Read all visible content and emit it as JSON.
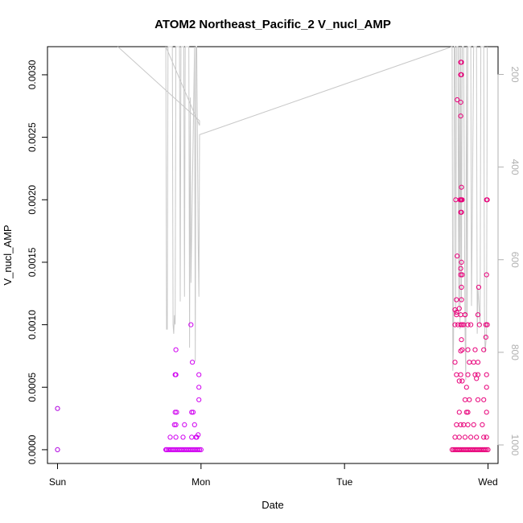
{
  "chart_data": {
    "type": "scatter",
    "title": "ATOM2 Northeast_Pacific_2 V_nucl_AMP",
    "xlabel": "Date",
    "ylabel": "V_nucl_AMP",
    "x_ticks": [
      {
        "label": "Sun",
        "value": 0
      },
      {
        "label": "Mon",
        "value": 1
      },
      {
        "label": "Tue",
        "value": 2
      },
      {
        "label": "Wed",
        "value": 3
      }
    ],
    "xlim": [
      -0.07,
      3.07
    ],
    "ylim": [
      -0.00011,
      0.003225
    ],
    "y_ticks": [
      {
        "label": "0.0000",
        "value": 0
      },
      {
        "label": "0.0005",
        "value": 0.0005
      },
      {
        "label": "0.0010",
        "value": 0.001
      },
      {
        "label": "0.0015",
        "value": 0.0015
      },
      {
        "label": "0.0020",
        "value": 0.002
      },
      {
        "label": "0.0025",
        "value": 0.0025
      },
      {
        "label": "0.0030",
        "value": 0.003
      }
    ],
    "y2lim": [
      1040,
      140
    ],
    "y2_ticks": [
      {
        "label": "200",
        "value": 200
      },
      {
        "label": "400",
        "value": 400
      },
      {
        "label": "600",
        "value": 600
      },
      {
        "label": "800",
        "value": 800
      },
      {
        "label": "1000",
        "value": 1000
      }
    ],
    "grid": false,
    "colors": {
      "profile_line": "#c8c8c8",
      "sun_points": "#b000e0",
      "mon_points": "#d000f0",
      "wed_points": "#e8007a",
      "axis": "#000000",
      "right_axis": "#b0b0b0"
    },
    "series": [
      {
        "group": "sun",
        "color": "#b000e0",
        "points": [
          [
            0.0,
            0.00033
          ],
          [
            0.0,
            0.0
          ]
        ]
      },
      {
        "group": "mon",
        "color": "#d000f0",
        "points": [
          [
            0.88,
            0.0
          ],
          [
            0.89,
            0.0
          ],
          [
            0.9,
            0.0
          ],
          [
            0.91,
            0.0
          ],
          [
            0.92,
            0.0
          ],
          [
            0.93,
            0.0
          ],
          [
            0.94,
            0.0
          ],
          [
            0.95,
            0.0
          ],
          [
            0.96,
            0.0
          ],
          [
            0.97,
            0.0
          ],
          [
            0.98,
            0.0
          ],
          [
            0.99,
            0.0
          ],
          [
            1.0,
            0.0
          ],
          [
            0.78,
            0.0
          ],
          [
            0.79,
            0.0
          ],
          [
            0.8,
            0.0
          ],
          [
            0.81,
            0.0
          ],
          [
            0.82,
            0.0
          ],
          [
            0.83,
            0.0
          ],
          [
            0.84,
            0.0
          ],
          [
            0.85,
            0.0
          ],
          [
            0.86,
            0.0
          ],
          [
            0.87,
            0.0
          ],
          [
            0.77,
            0.0
          ],
          [
            0.76,
            0.0
          ],
          [
            0.755,
            0.0
          ],
          [
            0.785,
            0.0001
          ],
          [
            0.825,
            0.0001
          ],
          [
            0.875,
            0.0001
          ],
          [
            0.935,
            0.0001
          ],
          [
            0.965,
            0.0001
          ],
          [
            0.815,
            0.0002
          ],
          [
            0.825,
            0.0002
          ],
          [
            0.885,
            0.0002
          ],
          [
            0.955,
            0.0002
          ],
          [
            0.97,
            0.0001
          ],
          [
            0.82,
            0.0003
          ],
          [
            0.83,
            0.0003
          ],
          [
            0.935,
            0.0003
          ],
          [
            0.945,
            0.0003
          ],
          [
            0.82,
            0.0006
          ],
          [
            0.825,
            0.0006
          ],
          [
            0.985,
            0.0006
          ],
          [
            0.825,
            0.0008
          ],
          [
            0.94,
            0.0007
          ],
          [
            0.93,
            0.001
          ],
          [
            0.985,
            0.0005
          ],
          [
            0.985,
            0.0004
          ],
          [
            0.98,
            0.00012
          ]
        ]
      },
      {
        "group": "wed",
        "color": "#e8007a",
        "points": [
          [
            2.75,
            0.0
          ],
          [
            2.76,
            0.0
          ],
          [
            2.77,
            0.0
          ],
          [
            2.78,
            0.0
          ],
          [
            2.79,
            0.0
          ],
          [
            2.8,
            0.0
          ],
          [
            2.81,
            0.0
          ],
          [
            2.82,
            0.0
          ],
          [
            2.83,
            0.0
          ],
          [
            2.84,
            0.0
          ],
          [
            2.85,
            0.0
          ],
          [
            2.86,
            0.0
          ],
          [
            2.87,
            0.0
          ],
          [
            2.88,
            0.0
          ],
          [
            2.89,
            0.0
          ],
          [
            2.9,
            0.0
          ],
          [
            2.91,
            0.0
          ],
          [
            2.92,
            0.0
          ],
          [
            2.93,
            0.0
          ],
          [
            2.94,
            0.0
          ],
          [
            2.95,
            0.0
          ],
          [
            2.96,
            0.0
          ],
          [
            2.97,
            0.0
          ],
          [
            2.98,
            0.0
          ],
          [
            2.99,
            0.0
          ],
          [
            3.0,
            0.0
          ],
          [
            2.77,
            0.0001
          ],
          [
            2.8,
            0.0001
          ],
          [
            2.84,
            0.0001
          ],
          [
            2.88,
            0.0001
          ],
          [
            2.92,
            0.0001
          ],
          [
            2.97,
            0.0001
          ],
          [
            2.99,
            0.0001
          ],
          [
            2.78,
            0.0002
          ],
          [
            2.81,
            0.0002
          ],
          [
            2.83,
            0.0002
          ],
          [
            2.86,
            0.0002
          ],
          [
            2.9,
            0.0002
          ],
          [
            2.96,
            0.0002
          ],
          [
            2.8,
            0.0003
          ],
          [
            2.85,
            0.0003
          ],
          [
            2.86,
            0.0003
          ],
          [
            2.99,
            0.0003
          ],
          [
            2.84,
            0.0004
          ],
          [
            2.87,
            0.0004
          ],
          [
            2.93,
            0.0004
          ],
          [
            2.97,
            0.0004
          ],
          [
            2.85,
            0.0005
          ],
          [
            2.99,
            0.0005
          ],
          [
            2.78,
            0.0006
          ],
          [
            2.81,
            0.0006
          ],
          [
            2.86,
            0.0006
          ],
          [
            2.91,
            0.0006
          ],
          [
            2.93,
            0.0006
          ],
          [
            2.99,
            0.0006
          ],
          [
            2.8,
            0.00055
          ],
          [
            2.82,
            0.00055
          ],
          [
            2.92,
            0.00057
          ],
          [
            2.77,
            0.0007
          ],
          [
            2.87,
            0.0007
          ],
          [
            2.9,
            0.0007
          ],
          [
            2.93,
            0.0007
          ],
          [
            2.81,
            0.00079
          ],
          [
            2.82,
            0.0008
          ],
          [
            2.86,
            0.0008
          ],
          [
            2.91,
            0.0008
          ],
          [
            2.97,
            0.0008
          ],
          [
            2.815,
            0.00088
          ],
          [
            2.985,
            0.0009
          ],
          [
            2.77,
            0.001
          ],
          [
            2.79,
            0.001
          ],
          [
            2.81,
            0.001
          ],
          [
            2.82,
            0.001
          ],
          [
            2.83,
            0.001
          ],
          [
            2.86,
            0.001
          ],
          [
            2.88,
            0.001
          ],
          [
            2.94,
            0.001
          ],
          [
            2.985,
            0.001
          ],
          [
            2.995,
            0.001
          ],
          [
            2.78,
            0.00108
          ],
          [
            2.81,
            0.00108
          ],
          [
            2.84,
            0.00108
          ],
          [
            2.93,
            0.00108
          ],
          [
            2.78,
            0.0011
          ],
          [
            2.77,
            0.00112
          ],
          [
            2.8,
            0.00113
          ],
          [
            2.84,
            0.00108
          ],
          [
            2.78,
            0.0012
          ],
          [
            2.815,
            0.0012
          ],
          [
            2.815,
            0.0013
          ],
          [
            2.935,
            0.0013
          ],
          [
            2.81,
            0.0014
          ],
          [
            2.82,
            0.0014
          ],
          [
            2.99,
            0.0014
          ],
          [
            2.81,
            0.00145
          ],
          [
            2.815,
            0.0015
          ],
          [
            2.785,
            0.00155
          ],
          [
            2.81,
            0.0019
          ],
          [
            2.815,
            0.0019
          ],
          [
            2.775,
            0.002
          ],
          [
            2.805,
            0.002
          ],
          [
            2.81,
            0.002
          ],
          [
            2.815,
            0.002
          ],
          [
            2.82,
            0.002
          ],
          [
            2.99,
            0.002
          ],
          [
            2.995,
            0.002
          ],
          [
            2.815,
            0.0021
          ],
          [
            2.81,
            0.00267
          ],
          [
            2.785,
            0.0028
          ],
          [
            2.81,
            0.00278
          ],
          [
            2.81,
            0.003
          ],
          [
            2.815,
            0.003
          ],
          [
            2.81,
            0.0031
          ],
          [
            2.815,
            0.0031
          ]
        ]
      }
    ],
    "profile_line": {
      "color": "#c8c8c8",
      "axis": "right",
      "points": [
        [
          0.42,
          140
        ],
        [
          0.99,
          300
        ],
        [
          0.99,
          310
        ],
        [
          0.755,
          140
        ],
        [
          0.76,
          750
        ],
        [
          0.765,
          750
        ],
        [
          0.77,
          140
        ],
        [
          0.8,
          140
        ],
        [
          0.805,
          740
        ],
        [
          0.81,
          760
        ],
        [
          0.815,
          720
        ],
        [
          0.82,
          740
        ],
        [
          0.825,
          140
        ],
        [
          0.84,
          140
        ],
        [
          0.85,
          140
        ],
        [
          0.855,
          690
        ],
        [
          0.86,
          140
        ],
        [
          0.87,
          140
        ],
        [
          0.88,
          140
        ],
        [
          0.885,
          680
        ],
        [
          0.89,
          140
        ],
        [
          0.915,
          140
        ],
        [
          0.92,
          790
        ],
        [
          0.925,
          250
        ],
        [
          0.93,
          650
        ],
        [
          0.955,
          140
        ],
        [
          0.96,
          820
        ],
        [
          0.965,
          140
        ],
        [
          0.97,
          140
        ],
        [
          0.98,
          560
        ],
        [
          0.985,
          680
        ],
        [
          0.99,
          330
        ],
        [
          2.75,
          140
        ],
        [
          2.755,
          840
        ],
        [
          2.76,
          780
        ],
        [
          2.765,
          140
        ],
        [
          2.77,
          140
        ],
        [
          2.775,
          720
        ],
        [
          2.78,
          140
        ],
        [
          2.79,
          140
        ],
        [
          2.795,
          700
        ],
        [
          2.8,
          140
        ],
        [
          2.805,
          750
        ],
        [
          2.81,
          140
        ],
        [
          2.815,
          690
        ],
        [
          2.82,
          140
        ],
        [
          2.83,
          140
        ],
        [
          2.84,
          760
        ],
        [
          2.845,
          860
        ],
        [
          2.85,
          140
        ],
        [
          2.855,
          720
        ],
        [
          2.86,
          140
        ],
        [
          2.88,
          140
        ],
        [
          2.885,
          700
        ],
        [
          2.9,
          140
        ],
        [
          2.92,
          140
        ],
        [
          2.925,
          760
        ],
        [
          2.93,
          660
        ],
        [
          2.945,
          740
        ],
        [
          2.95,
          140
        ],
        [
          2.97,
          140
        ],
        [
          2.975,
          720
        ],
        [
          2.98,
          800
        ],
        [
          2.99,
          760
        ],
        [
          2.995,
          140
        ]
      ]
    }
  }
}
